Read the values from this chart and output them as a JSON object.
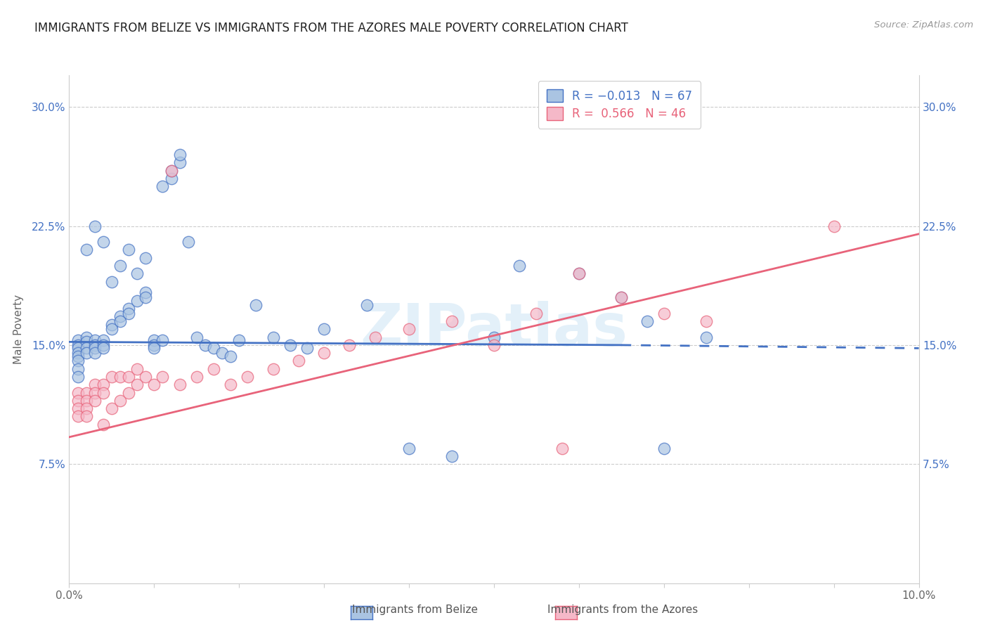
{
  "title": "IMMIGRANTS FROM BELIZE VS IMMIGRANTS FROM THE AZORES MALE POVERTY CORRELATION CHART",
  "source": "Source: ZipAtlas.com",
  "ylabel": "Male Poverty",
  "xlim": [
    0.0,
    0.1
  ],
  "ylim": [
    0.0,
    0.32
  ],
  "color_belize": "#aac4e2",
  "color_azores": "#f5b8c8",
  "line_color_belize": "#4472c4",
  "line_color_azores": "#e8637a",
  "watermark": "ZIPatlas",
  "belize_x": [
    0.001,
    0.001,
    0.001,
    0.001,
    0.001,
    0.001,
    0.001,
    0.001,
    0.002,
    0.002,
    0.002,
    0.002,
    0.002,
    0.003,
    0.003,
    0.003,
    0.003,
    0.003,
    0.004,
    0.004,
    0.004,
    0.004,
    0.005,
    0.005,
    0.005,
    0.006,
    0.006,
    0.006,
    0.007,
    0.007,
    0.007,
    0.008,
    0.008,
    0.009,
    0.009,
    0.009,
    0.01,
    0.01,
    0.01,
    0.011,
    0.011,
    0.012,
    0.012,
    0.013,
    0.013,
    0.014,
    0.015,
    0.016,
    0.017,
    0.018,
    0.019,
    0.02,
    0.022,
    0.024,
    0.026,
    0.028,
    0.03,
    0.035,
    0.04,
    0.045,
    0.05,
    0.053,
    0.06,
    0.065,
    0.068,
    0.07,
    0.075
  ],
  "belize_y": [
    0.153,
    0.15,
    0.148,
    0.145,
    0.143,
    0.14,
    0.135,
    0.13,
    0.155,
    0.152,
    0.148,
    0.145,
    0.21,
    0.153,
    0.15,
    0.148,
    0.145,
    0.225,
    0.153,
    0.15,
    0.148,
    0.215,
    0.163,
    0.16,
    0.19,
    0.168,
    0.165,
    0.2,
    0.173,
    0.17,
    0.21,
    0.178,
    0.195,
    0.183,
    0.18,
    0.205,
    0.153,
    0.15,
    0.148,
    0.153,
    0.25,
    0.255,
    0.26,
    0.265,
    0.27,
    0.215,
    0.155,
    0.15,
    0.148,
    0.145,
    0.143,
    0.153,
    0.175,
    0.155,
    0.15,
    0.148,
    0.16,
    0.175,
    0.085,
    0.08,
    0.155,
    0.2,
    0.195,
    0.18,
    0.165,
    0.085,
    0.155
  ],
  "azores_x": [
    0.001,
    0.001,
    0.001,
    0.001,
    0.002,
    0.002,
    0.002,
    0.002,
    0.003,
    0.003,
    0.003,
    0.004,
    0.004,
    0.004,
    0.005,
    0.005,
    0.006,
    0.006,
    0.007,
    0.007,
    0.008,
    0.008,
    0.009,
    0.01,
    0.011,
    0.012,
    0.013,
    0.015,
    0.017,
    0.019,
    0.021,
    0.024,
    0.027,
    0.03,
    0.033,
    0.036,
    0.04,
    0.045,
    0.05,
    0.055,
    0.058,
    0.06,
    0.065,
    0.07,
    0.075,
    0.09
  ],
  "azores_y": [
    0.12,
    0.115,
    0.11,
    0.105,
    0.12,
    0.115,
    0.11,
    0.105,
    0.125,
    0.12,
    0.115,
    0.125,
    0.12,
    0.1,
    0.13,
    0.11,
    0.13,
    0.115,
    0.13,
    0.12,
    0.135,
    0.125,
    0.13,
    0.125,
    0.13,
    0.26,
    0.125,
    0.13,
    0.135,
    0.125,
    0.13,
    0.135,
    0.14,
    0.145,
    0.15,
    0.155,
    0.16,
    0.165,
    0.15,
    0.17,
    0.085,
    0.195,
    0.18,
    0.17,
    0.165,
    0.225
  ],
  "bz_line_x": [
    0.0,
    0.065,
    0.1
  ],
  "bz_line_y": [
    0.152,
    0.15,
    0.148
  ],
  "az_line_x": [
    0.0,
    0.1
  ],
  "az_line_y": [
    0.092,
    0.22
  ]
}
